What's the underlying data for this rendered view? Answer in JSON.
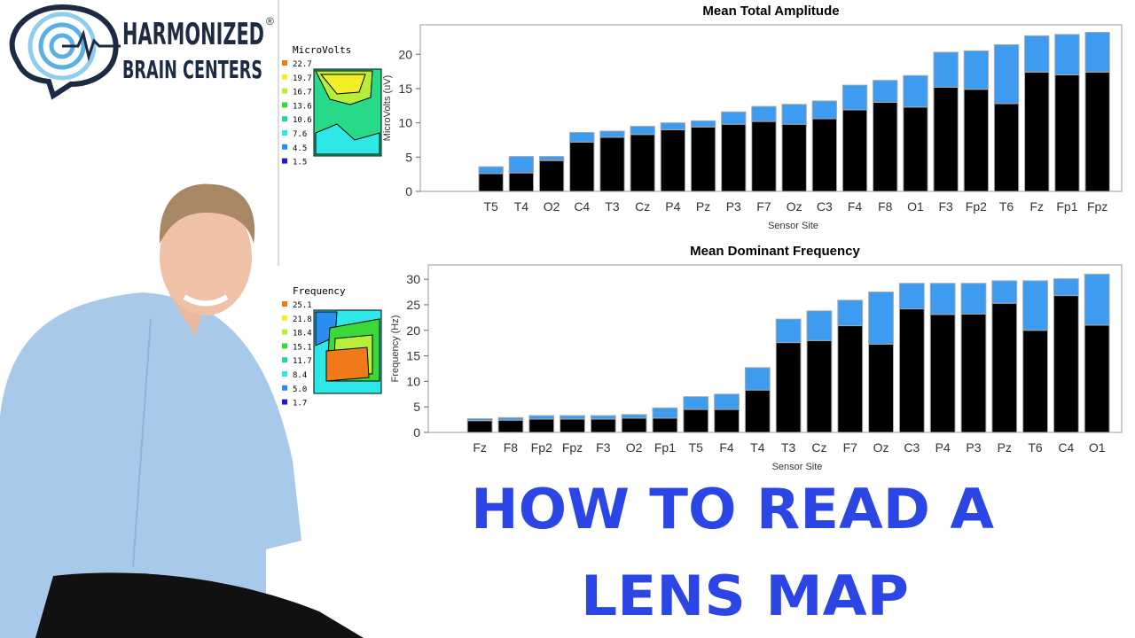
{
  "logo": {
    "line1": "HARMONIZED",
    "line2": "BRAIN CENTERS",
    "mark": "®"
  },
  "headline": {
    "line1": "HOW TO READ A",
    "line2": "LENS MAP"
  },
  "scales": [
    {
      "title": "MicroVolts",
      "items": [
        {
          "label": "22.7",
          "color": "#f07a1a"
        },
        {
          "label": "19.7",
          "color": "#f2ee2a"
        },
        {
          "label": "16.7",
          "color": "#b6ee3a"
        },
        {
          "label": "13.6",
          "color": "#3bd83a"
        },
        {
          "label": "10.6",
          "color": "#28d98a"
        },
        {
          "label": "7.6",
          "color": "#2ee8e8"
        },
        {
          "label": "4.5",
          "color": "#2a8ef0"
        },
        {
          "label": "1.5",
          "color": "#1a1ae0"
        }
      ]
    },
    {
      "title": "Frequency",
      "items": [
        {
          "label": "25.1",
          "color": "#f07a1a"
        },
        {
          "label": "21.8",
          "color": "#f2ee2a"
        },
        {
          "label": "18.4",
          "color": "#b6ee3a"
        },
        {
          "label": "15.1",
          "color": "#3bd83a"
        },
        {
          "label": "11.7",
          "color": "#28d98a"
        },
        {
          "label": "8.4",
          "color": "#2ee8e8"
        },
        {
          "label": "5.0",
          "color": "#2a8ef0"
        },
        {
          "label": "1.7",
          "color": "#1a1ae0"
        }
      ]
    }
  ],
  "chart_data": [
    {
      "type": "stacked-bar",
      "title": "Mean Total Amplitude",
      "x_label": "Sensor Site",
      "y_label": "MicroVolts (uV)",
      "categories": [
        "T5",
        "T4",
        "O2",
        "C4",
        "T3",
        "Cz",
        "P4",
        "Pz",
        "P3",
        "F7",
        "Oz",
        "C3",
        "F4",
        "F8",
        "O1",
        "F3",
        "Fp2",
        "T6",
        "Fz",
        "Fp1",
        "Fpz"
      ],
      "series": [
        {
          "color": "#000000",
          "values": [
            2.6,
            2.7,
            4.5,
            7.2,
            7.9,
            8.3,
            9.0,
            9.4,
            9.8,
            10.2,
            9.8,
            10.6,
            11.9,
            13.0,
            12.3,
            15.2,
            14.9,
            12.8,
            17.4,
            17.0,
            17.4
          ]
        },
        {
          "color": "#3d9cf0",
          "values": [
            1.0,
            2.4,
            0.6,
            1.4,
            0.9,
            1.2,
            1.0,
            0.9,
            1.8,
            2.2,
            2.9,
            2.6,
            3.6,
            3.2,
            4.6,
            5.1,
            5.6,
            8.6,
            5.3,
            5.9,
            5.8
          ]
        }
      ],
      "ylim": [
        0,
        24.3
      ],
      "yticks": [
        0,
        5,
        10,
        15,
        20
      ]
    },
    {
      "type": "stacked-bar",
      "title": "Mean Dominant Frequency",
      "x_label": "Sensor Site",
      "y_label": "Frequency (Hz)",
      "categories": [
        "Fz",
        "F8",
        "Fp2",
        "Fpz",
        "F3",
        "O2",
        "Fp1",
        "T5",
        "F4",
        "T4",
        "T3",
        "Cz",
        "F7",
        "Oz",
        "C3",
        "P4",
        "P3",
        "Pz",
        "T6",
        "C4",
        "O1"
      ],
      "series": [
        {
          "color": "#000000",
          "values": [
            2.3,
            2.4,
            2.6,
            2.6,
            2.6,
            2.8,
            2.8,
            4.5,
            4.5,
            8.3,
            17.6,
            18.0,
            20.9,
            17.3,
            24.2,
            23.1,
            23.2,
            25.3,
            20.0,
            26.8,
            21.0
          ]
        },
        {
          "color": "#3d9cf0",
          "values": [
            0.4,
            0.5,
            0.7,
            0.7,
            0.7,
            0.7,
            2.0,
            2.5,
            3.0,
            4.4,
            4.6,
            5.8,
            5.0,
            10.2,
            5.0,
            6.1,
            6.0,
            4.4,
            9.7,
            3.3,
            10.0
          ]
        }
      ],
      "ylim": [
        0,
        32.8
      ],
      "yticks": [
        0,
        5,
        10,
        15,
        20,
        25,
        30
      ]
    }
  ]
}
